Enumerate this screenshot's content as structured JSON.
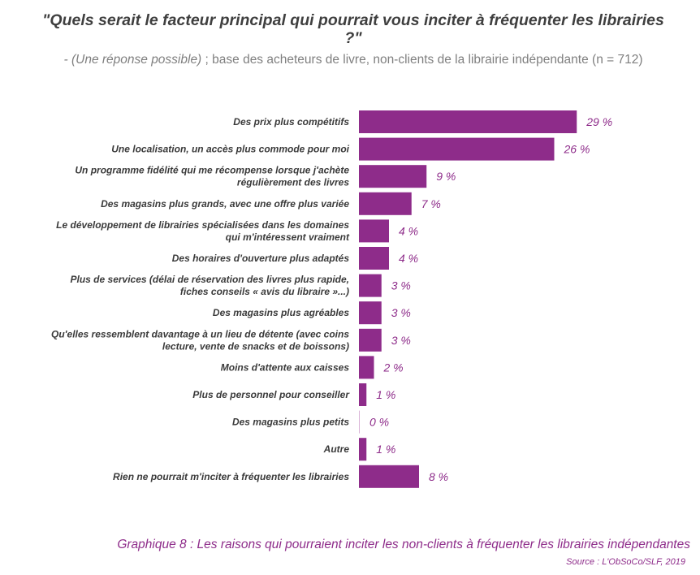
{
  "header": {
    "title": "\"Quels serait le facteur principal qui pourrait vous inciter à fréquenter les librairies ?\"",
    "subtitle_italic": "- (Une réponse possible)",
    "subtitle_rest": " ; base des acheteurs de livre, non-clients de la librairie indépendante (n = 712)"
  },
  "footer": {
    "caption": "Graphique 8 : Les raisons qui pourraient inciter les non-clients à fréquenter les librairies indépendantes",
    "source": "Source : L'ObSoCo/SLF, 2019"
  },
  "chart_data": {
    "type": "bar",
    "orientation": "horizontal",
    "bar_color": "#8e2c8a",
    "categories": [
      [
        "Des prix plus compétitifs"
      ],
      [
        "Une localisation, un accès plus commode pour moi"
      ],
      [
        "Un programme fidélité qui me récompense lorsque j'achète",
        "régulièrement des livres"
      ],
      [
        "Des magasins plus grands, avec une offre plus variée"
      ],
      [
        "Le développement de librairies spécialisées dans les domaines",
        "qui m'intéressent vraiment"
      ],
      [
        "Des horaires d'ouverture plus adaptés"
      ],
      [
        "Plus de services (délai de réservation des livres plus rapide,",
        "fiches conseils « avis du libraire »...)"
      ],
      [
        "Des magasins plus agréables"
      ],
      [
        "Qu'elles ressemblent davantage à un lieu de détente (avec coins",
        "lecture, vente de snacks et de boissons)"
      ],
      [
        "Moins d'attente aux caisses"
      ],
      [
        "Plus de personnel pour conseiller"
      ],
      [
        "Des magasins plus petits"
      ],
      [
        "Autre"
      ],
      [
        "Rien ne pourrait m'inciter à fréquenter les librairies"
      ]
    ],
    "values": [
      29,
      26,
      9,
      7,
      4,
      4,
      3,
      3,
      3,
      2,
      1,
      0,
      1,
      8
    ],
    "value_labels": [
      "29 %",
      "26 %",
      "9 %",
      "7 %",
      "4 %",
      "4 %",
      "3 %",
      "3 %",
      "3 %",
      "2 %",
      "1 %",
      "0 %",
      "1 %",
      "8 %"
    ]
  }
}
